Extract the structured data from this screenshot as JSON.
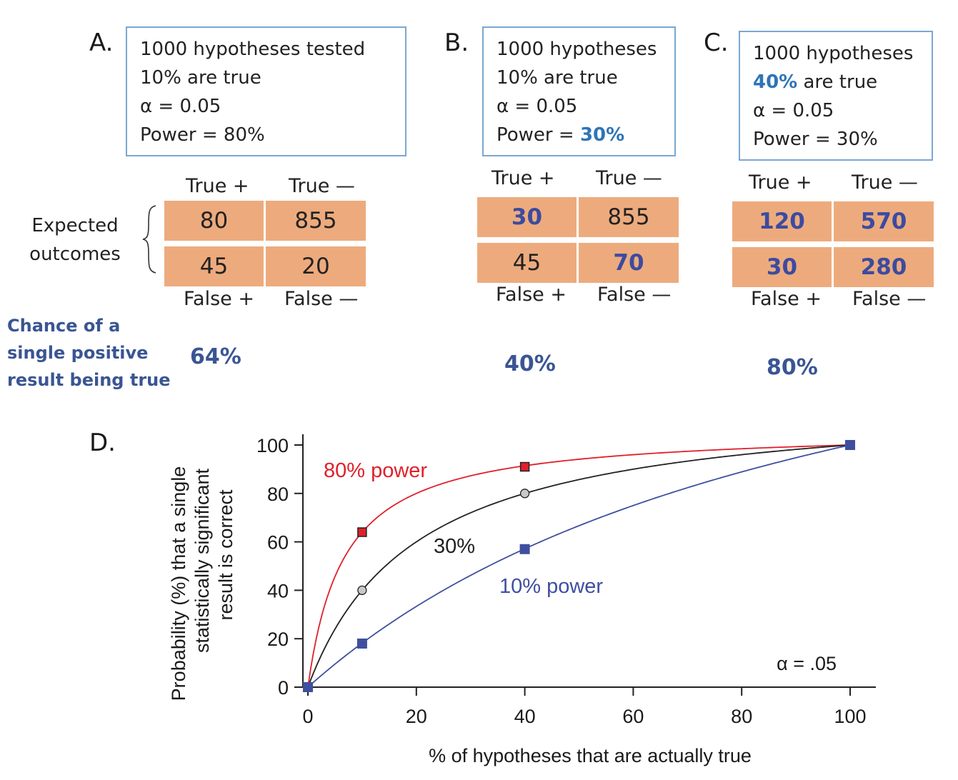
{
  "panels": [
    {
      "letter": "A.",
      "box_lines": [
        "1000 hypotheses tested",
        "10% are true",
        "α = 0.05",
        "Power = 80%"
      ],
      "col_labels_top": [
        "True +",
        "True —"
      ],
      "col_labels_bottom": [
        "False +",
        "False —"
      ],
      "cells": [
        [
          "80",
          "855"
        ],
        [
          "45",
          "20"
        ]
      ],
      "chance": "64%"
    },
    {
      "letter": "B.",
      "box_lines": [
        "1000 hypotheses",
        "10% are true",
        "α = 0.05",
        "Power = "
      ],
      "box_highlight": "30%",
      "col_labels_top": [
        "True +",
        "True —"
      ],
      "col_labels_bottom": [
        "False +",
        "False —"
      ],
      "cells": [
        [
          "30",
          "855"
        ],
        [
          "45",
          "70"
        ]
      ],
      "chance": "40%"
    },
    {
      "letter": "C.",
      "box_lines": [
        "1000 hypotheses",
        " are true",
        "α = 0.05",
        "Power = 30%"
      ],
      "box_highlight": "40%",
      "col_labels_top": [
        "True +",
        "True —"
      ],
      "col_labels_bottom": [
        "False +",
        "False —"
      ],
      "cells": [
        [
          "120",
          "570"
        ],
        [
          "30",
          "280"
        ]
      ],
      "chance": "80%"
    }
  ],
  "side_label": [
    "Expected",
    "outcomes"
  ],
  "chance_label": [
    "Chance of a",
    "single positive",
    "result being true"
  ],
  "colors": {
    "box_border": "#7ba7d1",
    "highlight_blue": "#2e75b6",
    "cell_fill": "#edab7d",
    "emphasis_navy": "#3c4ba0",
    "red_series": "#e0202a",
    "black_series": "#222222",
    "blue_series": "#3f4f9f"
  },
  "chart_data": {
    "panel_letter": "D.",
    "type": "line",
    "title": "",
    "xlabel": "% of hypotheses that are actually true",
    "ylabel_lines": [
      "Probability (%) that a single",
      "statistically significant",
      "result is correct"
    ],
    "xlim": [
      0,
      100
    ],
    "ylim": [
      0,
      100
    ],
    "xticks": [
      0,
      20,
      40,
      60,
      80,
      100
    ],
    "yticks": [
      0,
      20,
      40,
      60,
      80,
      100
    ],
    "grid": false,
    "alpha": 0.05,
    "annotation": "α = .05",
    "annotation_position": "bottom-right",
    "series": [
      {
        "name": "80% power",
        "label": "80% power",
        "power": 0.8,
        "color": "#e0202a",
        "marker": "square-outlined",
        "points": [
          {
            "x": 10,
            "y": 64
          },
          {
            "x": 40,
            "y": 91
          },
          {
            "x": 100,
            "y": 100
          }
        ]
      },
      {
        "name": "30%",
        "label": "30%",
        "power": 0.3,
        "color": "#222222",
        "marker": "circle-gray",
        "points": [
          {
            "x": 10,
            "y": 40
          },
          {
            "x": 40,
            "y": 80
          },
          {
            "x": 100,
            "y": 100
          }
        ]
      },
      {
        "name": "10% power",
        "label": "10% power",
        "power": 0.1,
        "color": "#3f4f9f",
        "marker": "square-filled",
        "points": [
          {
            "x": 0,
            "y": 0
          },
          {
            "x": 10,
            "y": 18
          },
          {
            "x": 40,
            "y": 57
          },
          {
            "x": 100,
            "y": 100
          }
        ]
      }
    ]
  }
}
